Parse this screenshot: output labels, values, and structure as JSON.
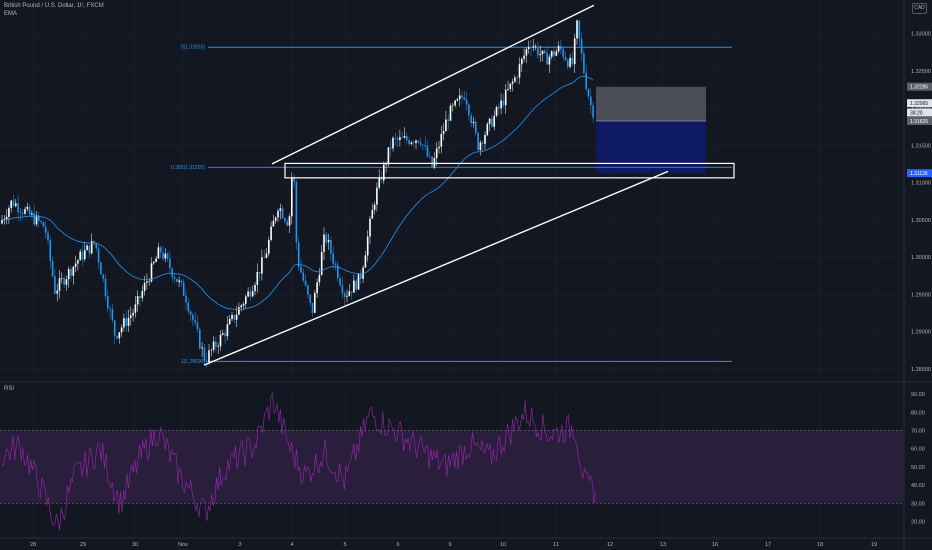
{
  "header": {
    "symbol_title": "British Pound / U.S. Dollar, 1h, FXCM",
    "indicator": "EMA",
    "currency": "CAD"
  },
  "rsi_panel": {
    "title": "RSI"
  },
  "chart_data": [
    {
      "type": "candlestick",
      "title": "British Pound / U.S. Dollar, 1h, FXCM",
      "price_range": [
        1.2835,
        1.3345
      ],
      "price_ticks": [
        1.33,
        1.325,
        1.32,
        1.315,
        1.31,
        1.305,
        1.3,
        1.295,
        1.29,
        1.285
      ],
      "price_tick_labels": [
        "1.33000",
        "1.32500",
        "1.32000",
        "1.31500",
        "1.31000",
        "1.30500",
        "1.30000",
        "1.29500",
        "1.29000",
        "1.28500"
      ],
      "x_ticks": [
        "28",
        "29",
        "30",
        "Nov",
        "3",
        "4",
        "5",
        "6",
        "9",
        "10",
        "11",
        "12",
        "13",
        "16",
        "17",
        "18",
        "19"
      ],
      "price_badges": [
        {
          "label": "1.32286",
          "price": 1.32286,
          "color": "#5d606b"
        },
        {
          "label": "1.32065",
          "price": 1.32065,
          "color": "#e0e3eb"
        },
        {
          "label": "38:20",
          "price": 1.3194,
          "color": "#e0e3eb"
        },
        {
          "label": "1.31826",
          "price": 1.31826,
          "color": "#5d606b"
        },
        {
          "label": "1.31126",
          "price": 1.31126,
          "color": "#2962ff"
        }
      ],
      "fib_levels": [
        {
          "label": "0(1.32816)",
          "price": 1.32816
        },
        {
          "label": "0.382(1.31205)",
          "price": 1.31205
        },
        {
          "label": "1(1.28600)",
          "price": 1.286
        }
      ],
      "channel": {
        "upper": [
          [
            1.3125,
            1.3338
          ]
        ],
        "lower": [
          [
            1.2855,
            1.3115
          ]
        ]
      },
      "support_zone": [
        1.3109,
        1.3123
      ],
      "position": {
        "entry": 1.31826,
        "stop": 1.32286,
        "target": 1.31126
      },
      "key_points": [
        {
          "label": "Oct 27 high",
          "price": 1.3075
        },
        {
          "label": "Oct 29 low",
          "price": 1.289
        },
        {
          "label": "Nov 2 low",
          "price": 1.2861
        },
        {
          "label": "Nov 4 spike high",
          "price": 1.3135
        },
        {
          "label": "Nov 4 low",
          "price": 1.2925
        },
        {
          "label": "Nov 10 high",
          "price": 1.3295
        },
        {
          "label": "Nov 11 high",
          "price": 1.331
        },
        {
          "label": "Last",
          "price": 1.3196
        }
      ],
      "ema_color": "#2196f3",
      "up_color": "#ffffff",
      "down_color": "#2196f3"
    },
    {
      "type": "line",
      "title": "RSI",
      "y_range": [
        12,
        95
      ],
      "y_ticks": [
        90,
        80,
        70,
        60,
        50,
        40,
        30,
        20
      ],
      "y_tick_labels": [
        "90.00",
        "80.00",
        "70.00",
        "60.00",
        "50.00",
        "40.00",
        "30.00",
        "20.00"
      ],
      "overbought": 70,
      "oversold": 30,
      "line_color": "#9c27b0",
      "band_color": "#2a1e3d",
      "key_points": [
        {
          "label": "Oct 28 low",
          "value": 17
        },
        {
          "label": "Nov 2 low",
          "value": 25
        },
        {
          "label": "Nov 4 high",
          "value": 87
        },
        {
          "label": "Nov 6 high",
          "value": 79
        },
        {
          "label": "Nov 11 high",
          "value": 80
        },
        {
          "label": "Last",
          "value": 37
        }
      ]
    }
  ]
}
